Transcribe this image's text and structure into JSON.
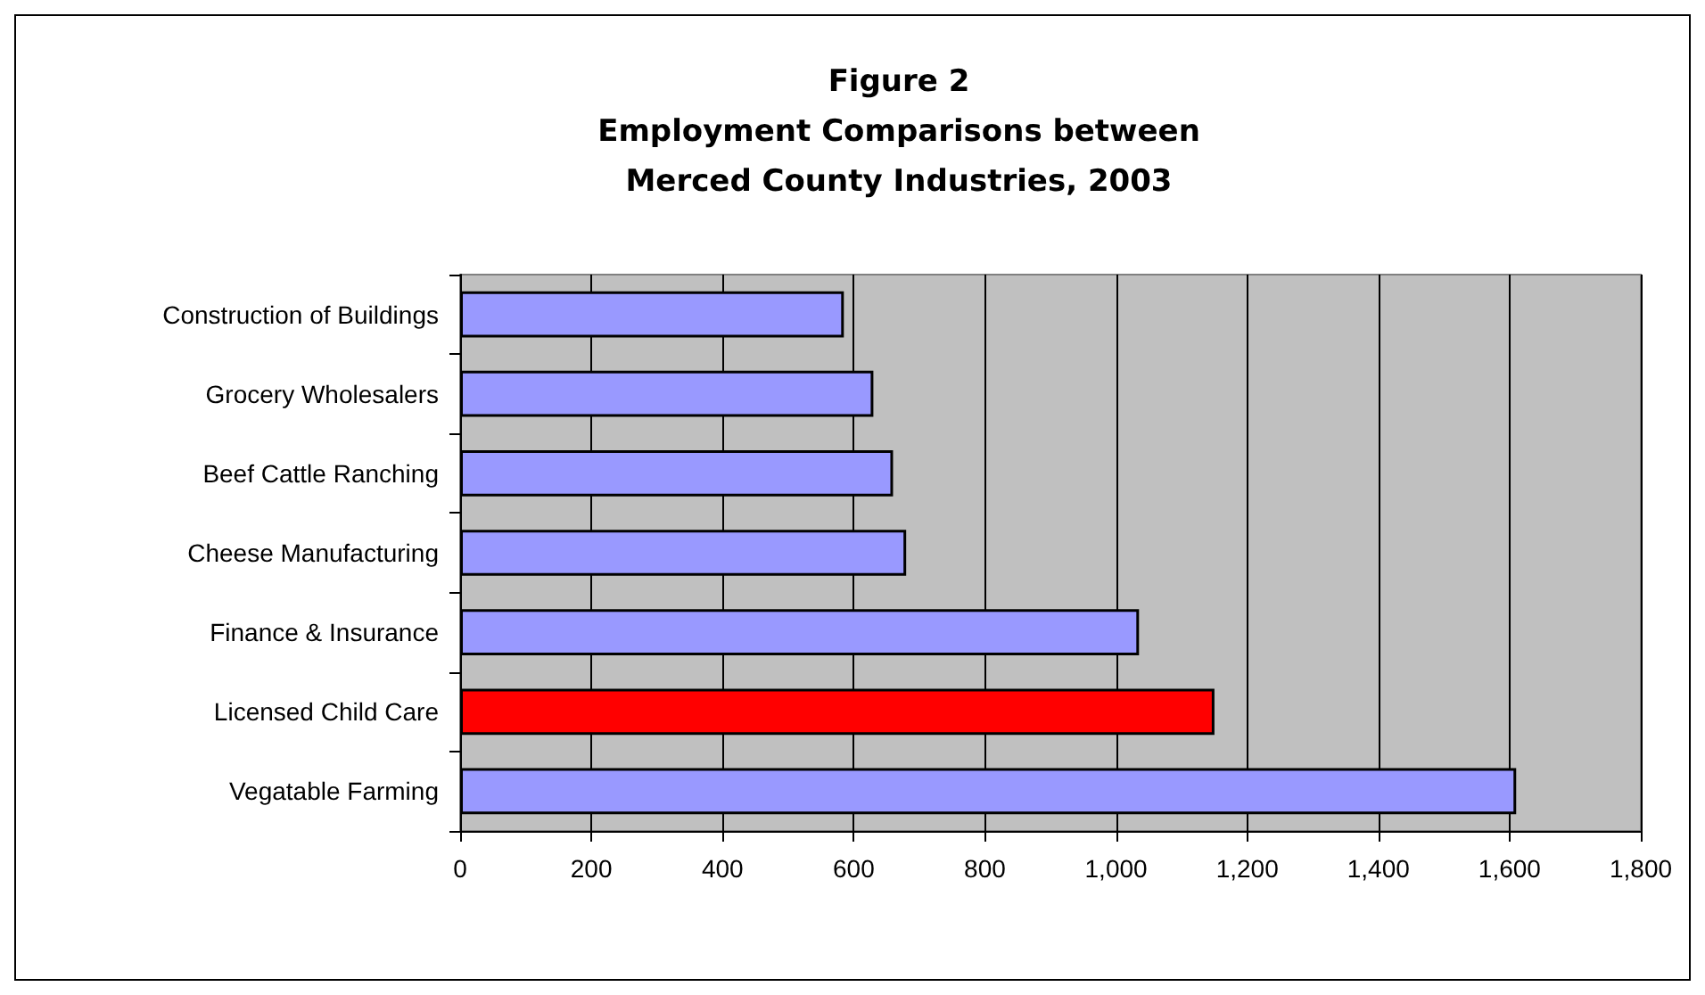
{
  "chart_data": {
    "type": "bar",
    "orientation": "horizontal",
    "title": "Figure 2\nEmployment Comparisons between\nMerced County Industries, 2003",
    "categories": [
      "Construction of Buildings",
      "Grocery Wholesalers",
      "Beef Cattle Ranching",
      "Cheese Manufacturing",
      "Finance & Insurance",
      "Licensed Child Care",
      "Vegatable Farming"
    ],
    "values": [
      585,
      630,
      660,
      680,
      1035,
      1150,
      1610
    ],
    "colors": [
      "#9999ff",
      "#9999ff",
      "#9999ff",
      "#9999ff",
      "#9999ff",
      "#ff0000",
      "#9999ff"
    ],
    "xlim": [
      0,
      1800
    ],
    "xticks": [
      {
        "value": 0,
        "label": "0"
      },
      {
        "value": 200,
        "label": "200"
      },
      {
        "value": 400,
        "label": "400"
      },
      {
        "value": 600,
        "label": "600"
      },
      {
        "value": 800,
        "label": "800"
      },
      {
        "value": 1000,
        "label": "1,000"
      },
      {
        "value": 1200,
        "label": "1,200"
      },
      {
        "value": 1400,
        "label": "1,400"
      },
      {
        "value": 1600,
        "label": "1,600"
      },
      {
        "value": 1800,
        "label": "1,800"
      }
    ],
    "grid": "x"
  }
}
